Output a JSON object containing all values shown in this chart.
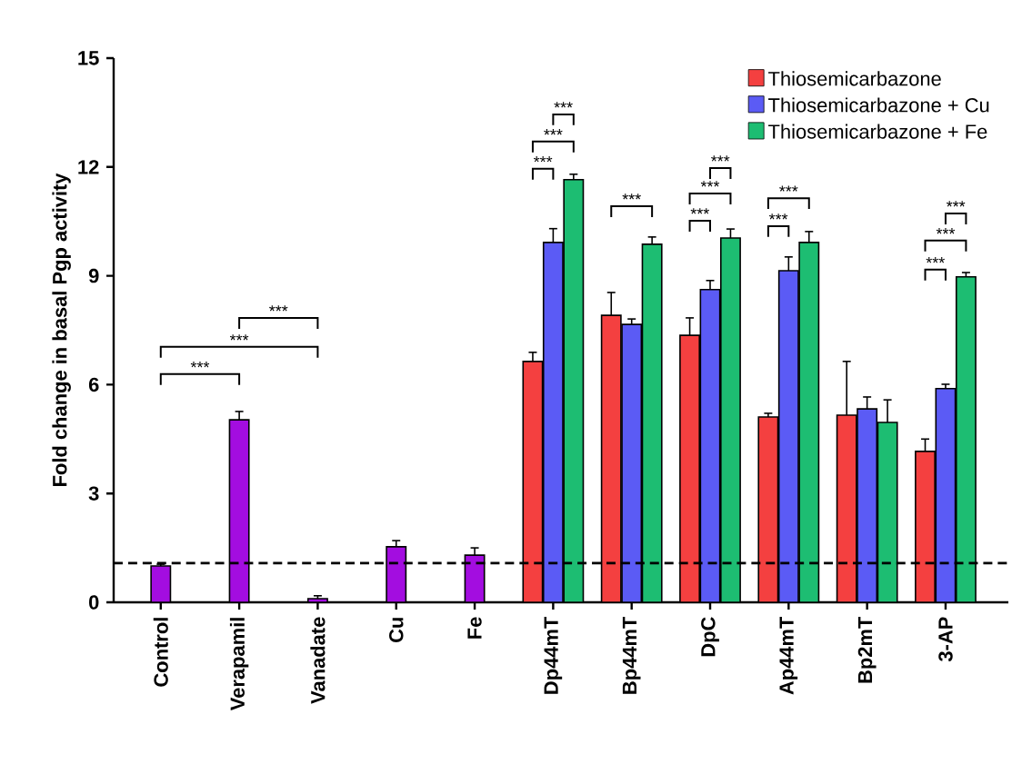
{
  "chart_data": {
    "type": "bar",
    "categories": [
      "Control",
      "Verapamil",
      "Vanadate",
      "Cu",
      "Fe",
      "Dp44mT",
      "Bp44mT",
      "DpC",
      "Ap44mT",
      "Bp2mT",
      "3-AP"
    ],
    "series": [
      {
        "color": "#a30de0",
        "values": [
          1.0,
          5.03,
          0.1,
          1.53,
          1.3,
          null,
          null,
          null,
          null,
          null,
          null
        ],
        "errors": [
          [
            1.0,
            1.05
          ],
          [
            5.03,
            5.26
          ],
          [
            0.1,
            0.18
          ],
          [
            1.53,
            1.7
          ],
          [
            1.3,
            1.5
          ],
          null,
          null,
          null,
          null,
          null,
          null
        ]
      },
      {
        "name": "Thiosemicarbazone",
        "color": "#f44040",
        "values": [
          null,
          null,
          null,
          null,
          null,
          6.64,
          7.91,
          7.36,
          5.11,
          5.16,
          4.16
        ],
        "errors": [
          null,
          null,
          null,
          null,
          null,
          [
            6.64,
            6.89
          ],
          [
            7.91,
            8.54
          ],
          [
            7.36,
            7.84
          ],
          [
            5.11,
            5.21
          ],
          [
            5.16,
            6.64
          ],
          [
            4.16,
            4.5
          ]
        ]
      },
      {
        "name": "Thiosemicarbazone + Cu",
        "color": "#5b5bf5",
        "values": [
          null,
          null,
          null,
          null,
          null,
          9.92,
          7.66,
          8.62,
          9.14,
          5.33,
          5.89
        ],
        "errors": [
          null,
          null,
          null,
          null,
          null,
          [
            9.92,
            10.3
          ],
          [
            7.66,
            7.81
          ],
          [
            8.62,
            8.87
          ],
          [
            9.14,
            9.52
          ],
          [
            5.33,
            5.66
          ],
          [
            5.89,
            6.01
          ]
        ]
      },
      {
        "name": "Thiosemicarbazone + Fe",
        "color": "#1dbd72",
        "values": [
          null,
          null,
          null,
          null,
          null,
          11.65,
          9.87,
          10.04,
          9.92,
          4.96,
          8.97
        ],
        "errors": [
          null,
          null,
          null,
          null,
          null,
          [
            11.65,
            11.8
          ],
          [
            9.87,
            10.07
          ],
          [
            10.04,
            10.29
          ],
          [
            9.92,
            10.22
          ],
          [
            4.96,
            5.58
          ],
          [
            8.97,
            9.09
          ]
        ]
      }
    ],
    "ylabel": "Fold change in basal Pgp activity",
    "ylim": [
      0,
      15
    ],
    "yticks": [
      0,
      3,
      6,
      9,
      12,
      15
    ],
    "legend": "top right",
    "ref_lines": [
      {
        "axis": "y",
        "value": 1.08,
        "line_style": "dashed",
        "color": "#000000"
      }
    ],
    "annotations": [
      "***",
      "***",
      "***",
      "***",
      "***",
      "***",
      "***",
      "***",
      "***",
      "***",
      "***",
      "***",
      "***",
      "***",
      "***"
    ]
  }
}
